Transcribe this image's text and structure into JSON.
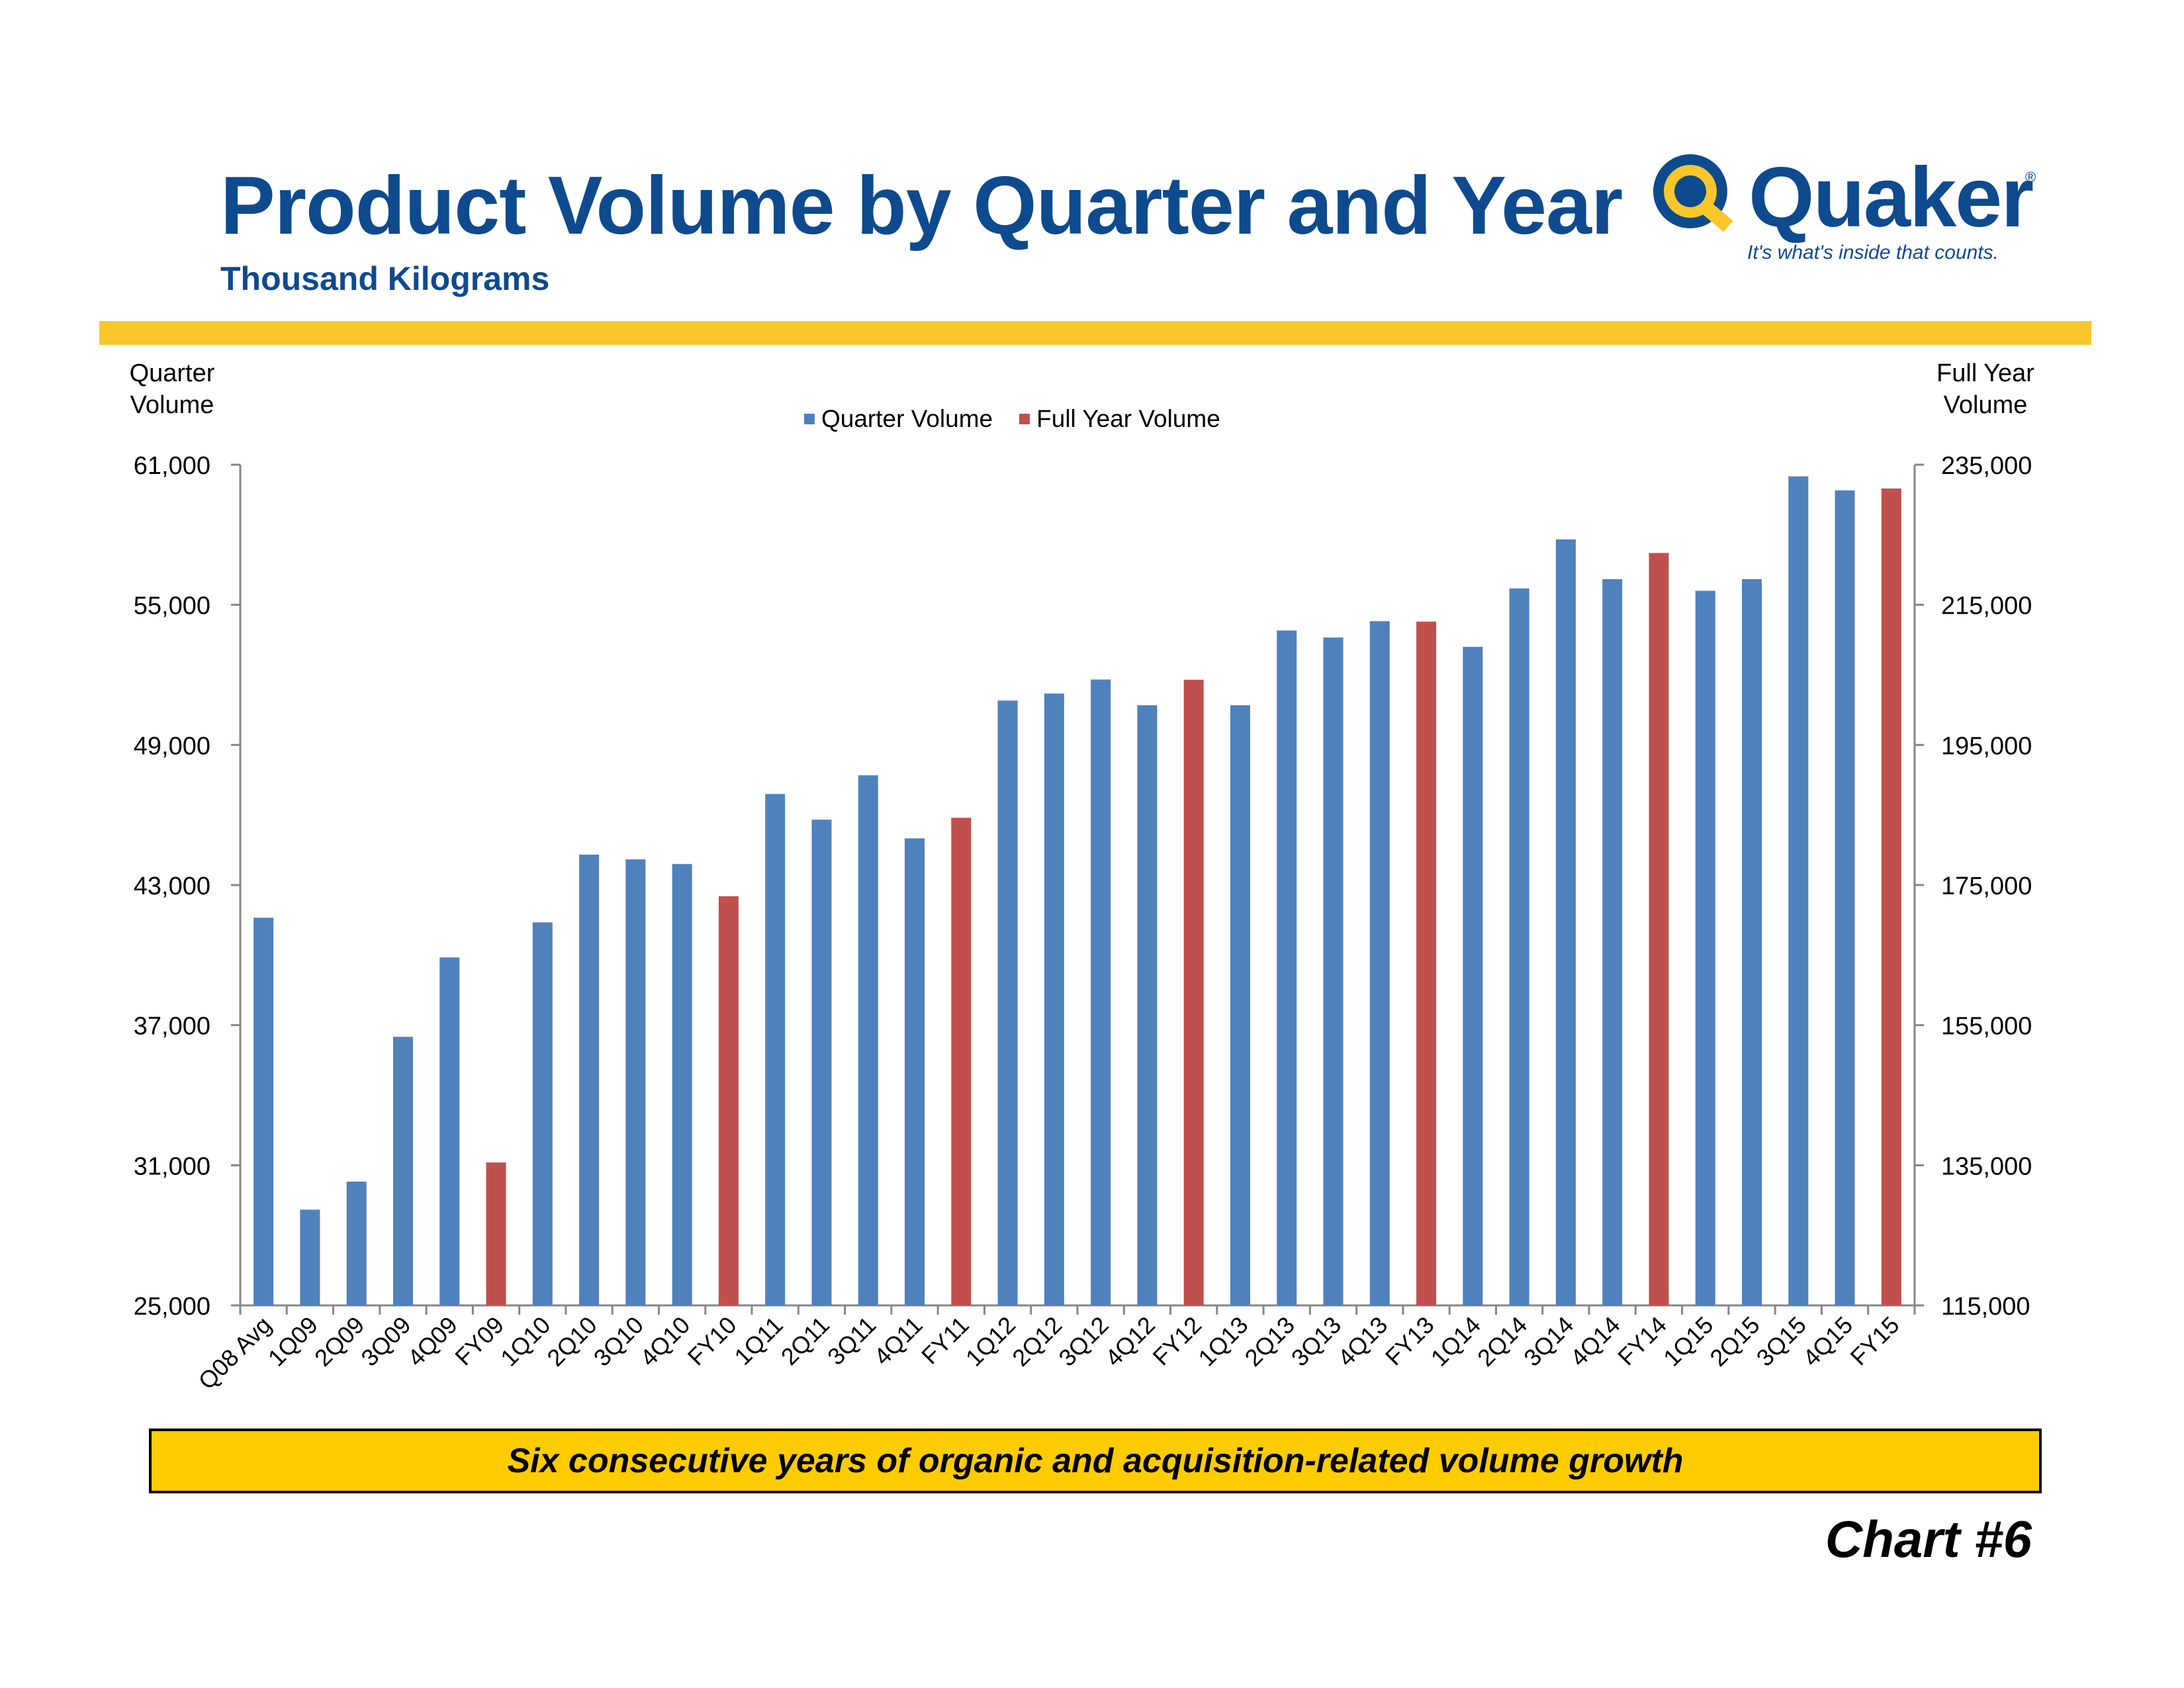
{
  "header": {
    "title": "Product Volume by Quarter and Year",
    "subtitle": "Thousand Kilograms"
  },
  "logo": {
    "word": "Quaker",
    "registered": "®",
    "tagline": "It's what's inside that counts."
  },
  "footer": {
    "banner": "Six consecutive years of organic and acquisition-related volume growth",
    "chart_number": "Chart #6"
  },
  "colors": {
    "title": "#0e4a8e",
    "gold_bar": "#f9c72b",
    "quarter_series": "#4f81bd",
    "full_year_series": "#c0504d",
    "banner": "#ffcc00"
  },
  "chart_data": {
    "type": "bar",
    "title": "",
    "ylabel_left": "Quarter Volume",
    "ylabel_right": "Full Year Volume",
    "ylim_left": [
      25000,
      61000
    ],
    "ylim_right": [
      115000,
      235000
    ],
    "yticks_left": [
      "25,000",
      "31,000",
      "37,000",
      "43,000",
      "49,000",
      "55,000",
      "61,000"
    ],
    "yticks_right": [
      "115,000",
      "135,000",
      "155,000",
      "175,000",
      "195,000",
      "215,000",
      "235,000"
    ],
    "grid": false,
    "legend_position": "top-center",
    "categories": [
      "Q08 Avg",
      "1Q09",
      "2Q09",
      "3Q09",
      "4Q09",
      "FY09",
      "1Q10",
      "2Q10",
      "3Q10",
      "4Q10",
      "FY10",
      "1Q11",
      "2Q11",
      "3Q11",
      "4Q11",
      "FY11",
      "1Q12",
      "2Q12",
      "3Q12",
      "4Q12",
      "FY12",
      "1Q13",
      "2Q13",
      "3Q13",
      "4Q13",
      "FY13",
      "1Q14",
      "2Q14",
      "3Q14",
      "4Q14",
      "FY14",
      "1Q15",
      "2Q15",
      "3Q15",
      "4Q15",
      "FY15"
    ],
    "series": [
      {
        "name": "Quarter Volume",
        "axis": "left",
        "values": [
          41600,
          29100,
          30300,
          36500,
          39900,
          null,
          41400,
          44300,
          44100,
          43900,
          null,
          46900,
          45800,
          47700,
          45000,
          null,
          50900,
          51200,
          51800,
          50700,
          null,
          50700,
          53900,
          53600,
          54300,
          null,
          53200,
          55700,
          57800,
          56100,
          null,
          55600,
          56100,
          60500,
          59900,
          null
        ]
      },
      {
        "name": "Full Year Volume",
        "axis": "right",
        "values": [
          null,
          null,
          null,
          null,
          null,
          135400,
          null,
          null,
          null,
          null,
          173400,
          null,
          null,
          null,
          null,
          184600,
          null,
          null,
          null,
          null,
          204300,
          null,
          null,
          null,
          null,
          212600,
          null,
          null,
          null,
          null,
          222400,
          null,
          null,
          null,
          null,
          231600
        ]
      }
    ]
  }
}
